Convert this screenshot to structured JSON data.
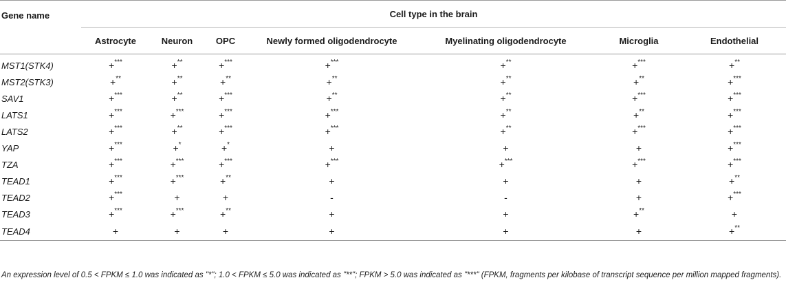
{
  "table": {
    "gene_header": "Gene name",
    "group_header": "Cell type in the brain",
    "columns": [
      "Astrocyte",
      "Neuron",
      "OPC",
      "Newly formed oligodendrocyte",
      "Myelinating oligodendrocyte",
      "Microglia",
      "Endothelial"
    ],
    "rows": [
      {
        "gene": "MST1(STK4)",
        "cells": [
          "+***",
          "+**",
          "+***",
          "+***",
          "+**",
          "+***",
          "+**"
        ]
      },
      {
        "gene": "MST2(STK3)",
        "cells": [
          "+**",
          "+**",
          "+**",
          "+**",
          "+**",
          "+**",
          "+***"
        ]
      },
      {
        "gene": "SAV1",
        "cells": [
          "+***",
          "+**",
          "+***",
          "+**",
          "+**",
          "+***",
          "+***"
        ]
      },
      {
        "gene": "LATS1",
        "cells": [
          "+***",
          "+***",
          "+***",
          "+***",
          "+**",
          "+**",
          "+***"
        ]
      },
      {
        "gene": "LATS2",
        "cells": [
          "+***",
          "+**",
          "+***",
          "+***",
          "+**",
          "+***",
          "+***"
        ]
      },
      {
        "gene": "YAP",
        "cells": [
          "+***",
          "+*",
          "+*",
          "+",
          "+",
          "+",
          "+***"
        ]
      },
      {
        "gene": "TZA",
        "cells": [
          "+***",
          "+***",
          "+***",
          "+***",
          "+***",
          "+***",
          "+***"
        ]
      },
      {
        "gene": "TEAD1",
        "cells": [
          "+***",
          "+***",
          "+**",
          "+",
          "+",
          "+",
          "+**"
        ]
      },
      {
        "gene": "TEAD2",
        "cells": [
          "+***",
          "+",
          "+",
          "-",
          "-",
          "+",
          "+***"
        ]
      },
      {
        "gene": "TEAD3",
        "cells": [
          "+***",
          "+***",
          "+**",
          "+",
          "+",
          "+**",
          "+"
        ]
      },
      {
        "gene": "TEAD4",
        "cells": [
          "+",
          "+",
          "+",
          "+",
          "+",
          "+",
          "+**"
        ]
      }
    ]
  },
  "footnote": "An expression level of 0.5 < FPKM ≤ 1.0 was indicated as \"*\"; 1.0 < FPKM ≤ 5.0 was indicated as \"**\"; FPKM > 5.0 was indicated as \"***\" (FPKM, fragments per kilobase of transcript sequence per million mapped fragments)."
}
